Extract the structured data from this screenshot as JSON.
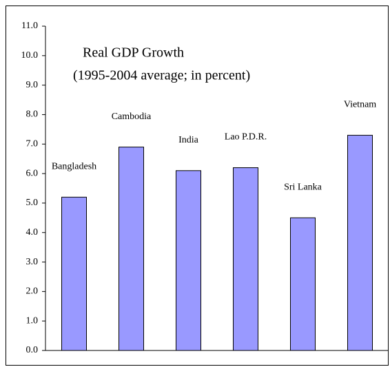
{
  "chart_data": {
    "type": "bar",
    "title": "Real GDP Growth",
    "subtitle": "(1995-2004 average; in percent)",
    "categories": [
      "Bangladesh",
      "Cambodia",
      "India",
      "Lao P.D.R.",
      "Sri Lanka",
      "Vietnam"
    ],
    "values": [
      5.2,
      6.9,
      6.1,
      6.2,
      4.5,
      7.3
    ],
    "color": "#9999ff",
    "ylim": [
      0,
      11
    ],
    "yticks": [
      {
        "value": 0,
        "label": "0.0"
      },
      {
        "value": 1,
        "label": "1.0"
      },
      {
        "value": 2,
        "label": "2.0"
      },
      {
        "value": 3,
        "label": "3.0"
      },
      {
        "value": 4,
        "label": "4.0"
      },
      {
        "value": 5,
        "label": "5.0"
      },
      {
        "value": 6,
        "label": "6.0"
      },
      {
        "value": 7,
        "label": "7.0"
      },
      {
        "value": 8,
        "label": "8.0"
      },
      {
        "value": 9,
        "label": "9.0"
      },
      {
        "value": 10,
        "label": "10.0"
      },
      {
        "value": 11,
        "label": "11.0"
      }
    ],
    "grid": false
  }
}
